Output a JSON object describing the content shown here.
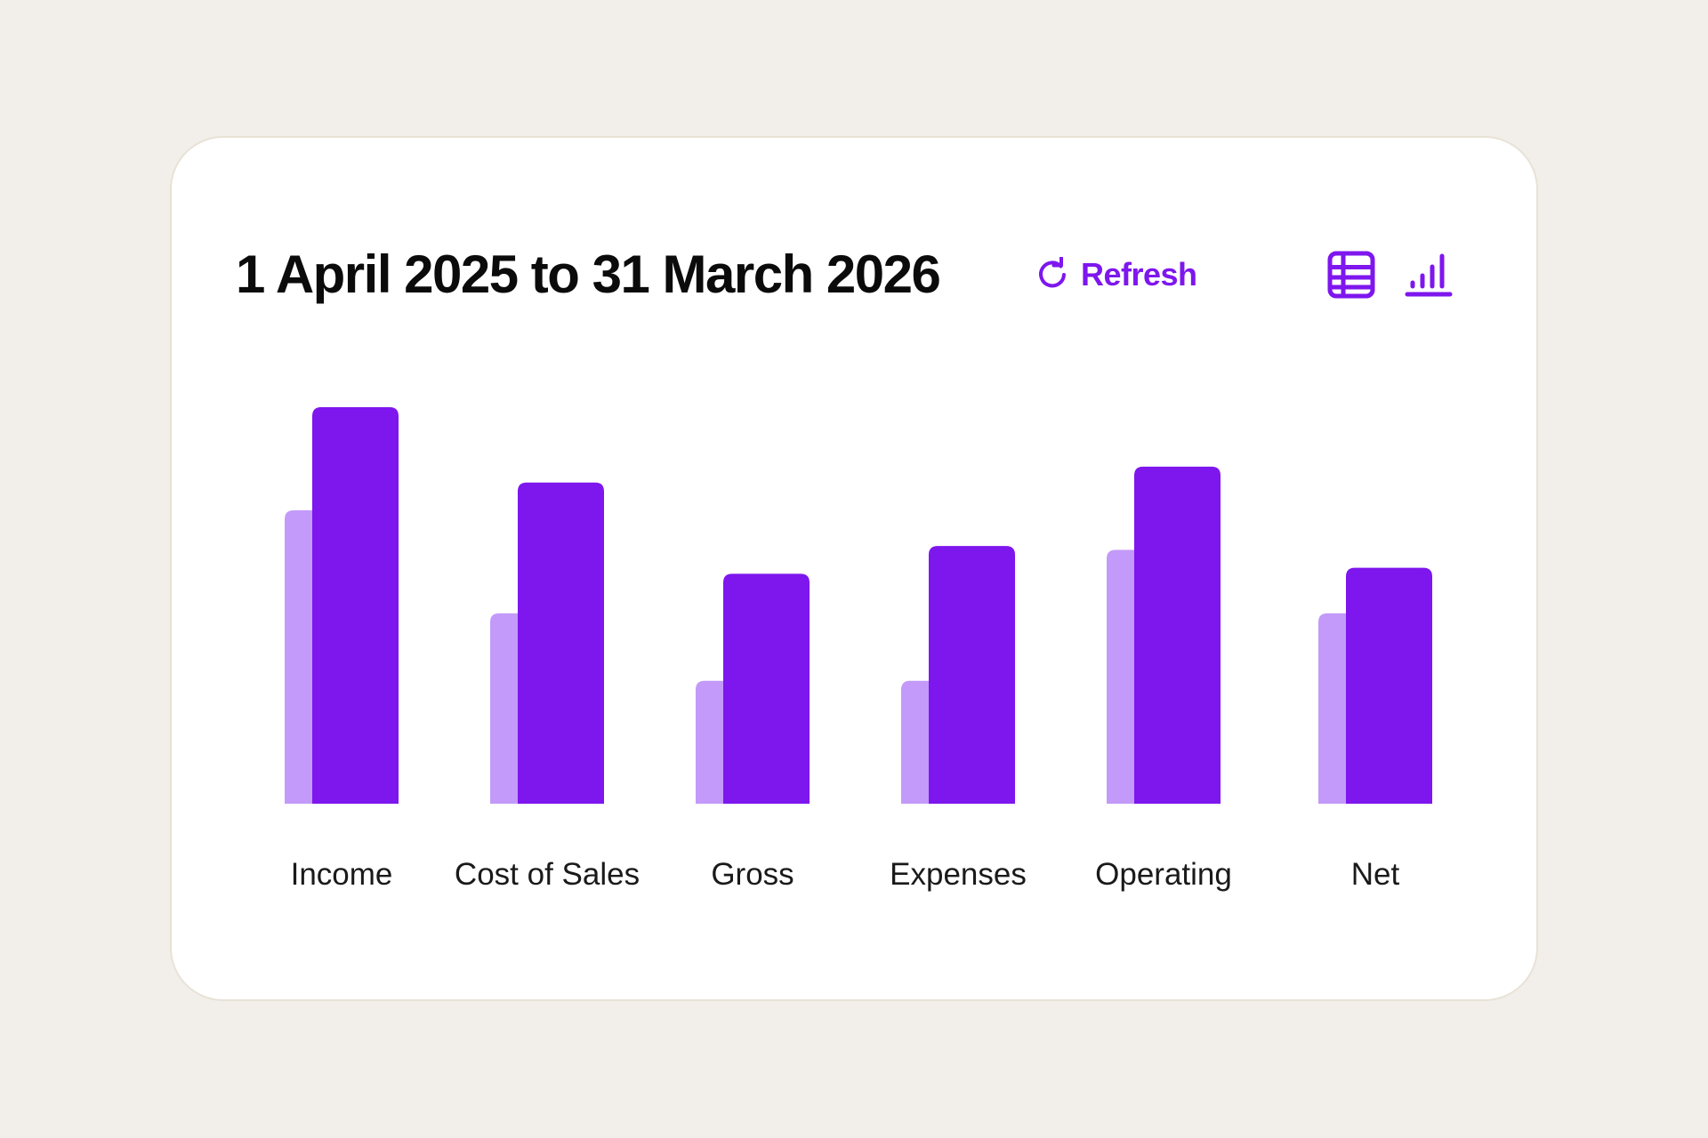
{
  "header": {
    "title": "1 April 2025 to 31 March 2026",
    "refresh_label": "Refresh",
    "refresh_icon": "refresh-icon",
    "table_view_icon": "table-icon",
    "chart_view_icon": "bar-chart-icon",
    "active_view": "chart"
  },
  "colors": {
    "background": "#f2efea",
    "card": "#ffffff",
    "accent": "#7e16ee",
    "secondary_bar": "#c39af9",
    "primary_bar": "#7e16ee"
  },
  "chart_data": {
    "type": "bar",
    "categories": [
      "Income",
      "Cost of Sales",
      "Gross",
      "Expenses",
      "Operating",
      "Net"
    ],
    "series": [
      {
        "values": [
          74,
          48,
          31,
          31,
          64,
          48
        ]
      },
      {
        "values": [
          100,
          81,
          58,
          65,
          85,
          59.5
        ]
      }
    ],
    "ylim": [
      0,
      100
    ],
    "grid": false,
    "axes_visible": false,
    "legend": "none"
  }
}
